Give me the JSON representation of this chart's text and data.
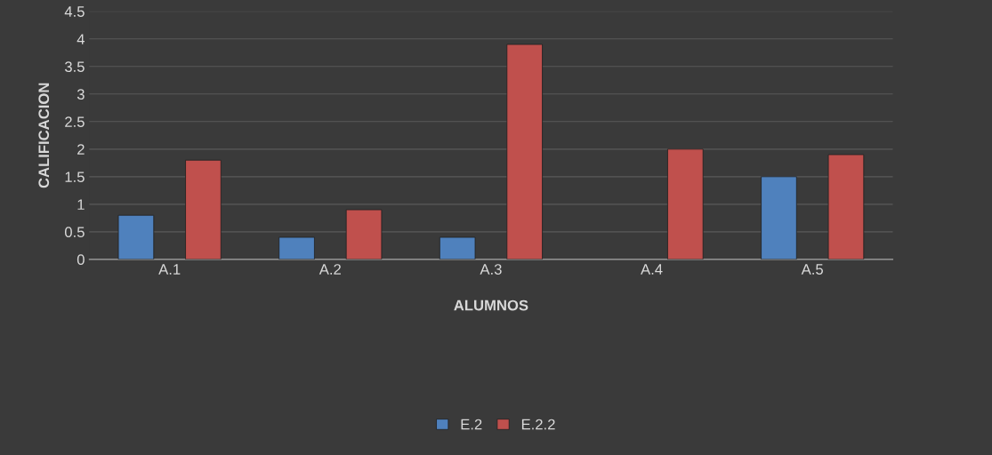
{
  "chart_data": {
    "type": "bar",
    "xlabel": "ALUMNOS",
    "ylabel": "CALIFICACION",
    "categories": [
      "A.1",
      "A.2",
      "A.3",
      "A.4",
      "A.5"
    ],
    "series": [
      {
        "name": "E.2",
        "color": "#4f81bd",
        "values": [
          0.8,
          0.4,
          0.4,
          null,
          1.5
        ]
      },
      {
        "name": "E.2.2",
        "color": "#c0504d",
        "values": [
          1.8,
          0.9,
          3.9,
          2.0,
          1.9
        ]
      }
    ],
    "ylim": [
      0,
      4.5
    ],
    "yticks": [
      0,
      0.5,
      1,
      1.5,
      2,
      2.5,
      3,
      3.5,
      4,
      4.5
    ],
    "grid": "y",
    "legend": "bottom"
  }
}
